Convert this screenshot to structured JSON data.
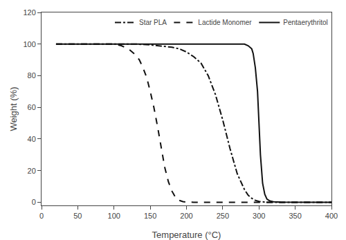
{
  "chart_data": {
    "type": "line",
    "xlabel": "Temperature (°C)",
    "ylabel": "Weight (%)",
    "xlim": [
      0,
      400
    ],
    "ylim": [
      -2,
      120
    ],
    "xticks": [
      0,
      50,
      100,
      150,
      200,
      250,
      300,
      350,
      400
    ],
    "yticks": [
      0,
      20,
      40,
      60,
      80,
      100,
      120
    ],
    "grid": false,
    "legend": "upper right",
    "series": [
      {
        "name": "Star PLA",
        "color": "#111111",
        "line_style": "dashdot",
        "x": [
          20,
          100,
          130,
          150,
          160,
          170,
          180,
          190,
          200,
          210,
          220,
          230,
          240,
          250,
          260,
          270,
          280,
          285,
          290,
          295,
          300,
          310,
          400
        ],
        "values": [
          100,
          100,
          100,
          99.5,
          99,
          98.5,
          98,
          97,
          95,
          92,
          88,
          80,
          68,
          52,
          34,
          18,
          8,
          4.5,
          2.5,
          1.2,
          0.5,
          0,
          0
        ]
      },
      {
        "name": "Lactide Monomer",
        "color": "#111111",
        "line_style": "dashed",
        "x": [
          20,
          100,
          110,
          120,
          130,
          135,
          140,
          145,
          150,
          155,
          160,
          165,
          170,
          175,
          180,
          185,
          190,
          195,
          200,
          210,
          400
        ],
        "values": [
          100,
          100,
          99,
          97,
          93,
          90,
          85,
          79,
          70,
          60,
          48,
          35,
          22,
          13,
          7,
          3,
          1.2,
          0.4,
          0.1,
          0,
          0
        ]
      },
      {
        "name": "Pentaerythritol",
        "color": "#111111",
        "line_style": "solid",
        "x": [
          20,
          200,
          250,
          270,
          280,
          285,
          290,
          292,
          295,
          298,
          300,
          302,
          305,
          308,
          311,
          315,
          320,
          330,
          400
        ],
        "values": [
          100,
          100,
          100,
          100,
          100,
          99,
          97,
          94,
          85,
          70,
          50,
          30,
          12,
          5,
          2,
          0.8,
          0.3,
          0.1,
          0
        ]
      }
    ]
  }
}
